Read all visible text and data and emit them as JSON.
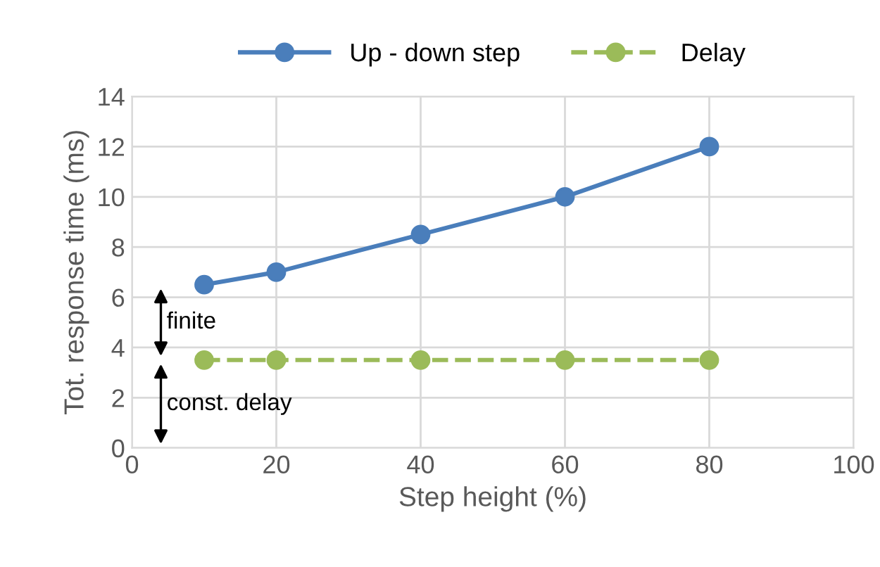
{
  "chart_data": {
    "type": "line",
    "xlabel": "Step height (%)",
    "ylabel": "Tot. response time (ms)",
    "x": [
      10,
      20,
      40,
      60,
      80
    ],
    "series": [
      {
        "name": "Up - down step",
        "color": "#4a7ebb",
        "values": [
          6.5,
          7,
          8.5,
          10,
          12
        ],
        "line_style": "solid"
      },
      {
        "name": "Delay",
        "color": "#9bbb59",
        "values": [
          3.5,
          3.5,
          3.5,
          3.5,
          3.5
        ],
        "line_style": "dashed"
      }
    ],
    "xlim": [
      0,
      100
    ],
    "xticks": [
      0,
      20,
      40,
      60,
      80,
      100
    ],
    "ylim": [
      0,
      14
    ],
    "yticks": [
      0,
      2,
      4,
      6,
      8,
      10,
      12,
      14
    ],
    "grid": true,
    "legend": "top",
    "marker": "circle",
    "annotations": [
      "finite",
      "const. delay"
    ]
  }
}
